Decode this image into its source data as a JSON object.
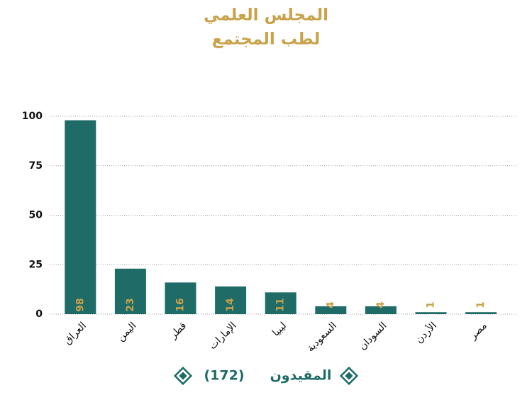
{
  "chart_data": {
    "type": "bar",
    "title": [
      "المجلس العلمي",
      "لطب المجتمع"
    ],
    "categories": [
      "العراق",
      "اليمن",
      "قطر",
      "الإمارات",
      "ليبيا",
      "السعودية",
      "السودان",
      "الأردن",
      "مصر"
    ],
    "series": [
      {
        "name": "المقيدون",
        "color": "#1e6b67",
        "values": [
          98,
          23,
          16,
          14,
          11,
          4,
          4,
          1,
          1
        ]
      }
    ],
    "legend_total": {
      "value": 172,
      "label": "(172)"
    },
    "value_label_color": "#c9a24a",
    "ylim": [
      0,
      100
    ],
    "yticks": [
      0,
      25,
      50,
      75,
      100
    ],
    "grid": true
  }
}
